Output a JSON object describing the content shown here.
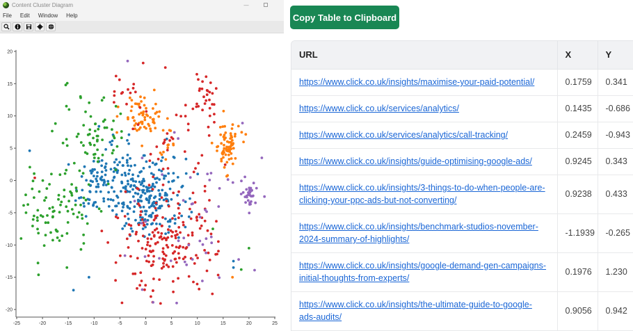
{
  "window": {
    "title": "Content Cluster Diagram",
    "controls": {
      "minimize": "—",
      "maximize": "□"
    },
    "menu": [
      "File",
      "Edit",
      "Window",
      "Help"
    ],
    "toolbar": [
      {
        "icon": "search-icon"
      },
      {
        "icon": "info-icon"
      },
      {
        "icon": "save-icon"
      },
      {
        "icon": "gear-icon"
      },
      {
        "icon": "globe-icon"
      }
    ]
  },
  "copy_button": {
    "label": "Copy Table to Clipboard",
    "color": "#198754"
  },
  "table": {
    "headers": [
      "URL",
      "X",
      "Y"
    ],
    "rows": [
      {
        "url": "https://www.click.co.uk/insights/maximise-your-paid-potential/",
        "x": "0.1759",
        "y": "0.341",
        "tall": false
      },
      {
        "url": "https://www.click.co.uk/services/analytics/",
        "x": "0.1435",
        "y": "-0.686",
        "tall": false
      },
      {
        "url": "https://www.click.co.uk/services/analytics/call-tracking/",
        "x": "0.2459",
        "y": "-0.943",
        "tall": false
      },
      {
        "url": "https://www.click.co.uk/insights/guide-optimising-google-ads/",
        "x": "0.9245",
        "y": "0.343",
        "tall": false
      },
      {
        "url": "https://www.click.co.uk/insights/3-things-to-do-when-people-are-clicking-your-ppc-ads-but-not-converting/",
        "x": "0.9238",
        "y": "0.433",
        "tall": true
      },
      {
        "url": "https://www.click.co.uk/insights/benchmark-studios-november-2024-summary-of-highlights/",
        "x": "-1.1939",
        "y": "-0.265",
        "tall": true
      },
      {
        "url": "https://www.click.co.uk/insights/google-demand-gen-campaigns-initial-thoughts-from-experts/",
        "x": "0.1976",
        "y": "1.230",
        "tall": true
      },
      {
        "url": "https://www.click.co.uk/insights/the-ultimate-guide-to-google-ads-audits/",
        "x": "0.9056",
        "y": "0.942",
        "tall": true
      }
    ]
  },
  "chart_data": {
    "type": "scatter",
    "title": "",
    "xlabel": "",
    "ylabel": "",
    "xlim": [
      -25,
      25
    ],
    "ylim": [
      -20,
      20
    ],
    "xticks": [
      -25,
      -20,
      -15,
      -10,
      -5,
      0,
      5,
      10,
      15,
      20,
      25
    ],
    "yticks": [
      -20,
      -15,
      -10,
      -5,
      0,
      5,
      10,
      15,
      20
    ],
    "grid": false,
    "legend": null,
    "colors": {
      "blue": "#1f77b4",
      "orange": "#ff7f0e",
      "green": "#2ca02c",
      "red": "#d62728",
      "purple": "#9467bd"
    },
    "clusters": [
      {
        "name": "blue-main",
        "color": "blue",
        "cx": 0.5,
        "cy": -2.5,
        "sx": 3.6,
        "sy": 3.0,
        "n": 230
      },
      {
        "name": "blue-sub",
        "color": "blue",
        "cx": -9.5,
        "cy": -0.8,
        "sx": 2.0,
        "sy": 2.0,
        "n": 70
      },
      {
        "name": "blue-upper",
        "color": "blue",
        "cx": -6,
        "cy": 3.5,
        "sx": 2.5,
        "sy": 1.8,
        "n": 30
      },
      {
        "name": "orange-top",
        "color": "orange",
        "cx": -0.6,
        "cy": 9.8,
        "sx": 2.0,
        "sy": 1.8,
        "n": 65
      },
      {
        "name": "orange-right",
        "color": "orange",
        "cx": 15.6,
        "cy": 5.4,
        "sx": 1.3,
        "sy": 1.8,
        "n": 75
      },
      {
        "name": "orange-mid",
        "color": "orange",
        "cx": 4.5,
        "cy": 5.5,
        "sx": 1.2,
        "sy": 1.0,
        "n": 10
      },
      {
        "name": "green-left",
        "color": "green",
        "cx": -17,
        "cy": -5,
        "sx": 3.2,
        "sy": 3.2,
        "n": 85
      },
      {
        "name": "green-upper",
        "color": "green",
        "cx": -10,
        "cy": 6.5,
        "sx": 3.5,
        "sy": 3.0,
        "n": 65
      },
      {
        "name": "red-lower",
        "color": "red",
        "cx": 3.5,
        "cy": -10.5,
        "sx": 5.0,
        "sy": 3.5,
        "n": 170
      },
      {
        "name": "red-upper-right",
        "color": "red",
        "cx": 11.5,
        "cy": 13.5,
        "sx": 1.6,
        "sy": 2.0,
        "n": 28
      },
      {
        "name": "red-scatter",
        "color": "red",
        "cx": 7,
        "cy": 2,
        "sx": 5.0,
        "sy": 7.0,
        "n": 55
      },
      {
        "name": "red-upper-left",
        "color": "red",
        "cx": -5,
        "cy": 14,
        "sx": 2.0,
        "sy": 1.5,
        "n": 14
      },
      {
        "name": "purple-right",
        "color": "purple",
        "cx": 20,
        "cy": -2,
        "sx": 0.7,
        "sy": 0.9,
        "n": 30
      },
      {
        "name": "purple-scatter",
        "color": "purple",
        "cx": 10,
        "cy": -5,
        "sx": 6.5,
        "sy": 8.0,
        "n": 45
      }
    ],
    "outliers": [
      {
        "x": -22.5,
        "y": 4.6,
        "color": "blue"
      },
      {
        "x": -21.5,
        "y": 0.4,
        "color": "red"
      },
      {
        "x": -22.0,
        "y": -1.3,
        "color": "green"
      },
      {
        "x": -23.2,
        "y": -5.0,
        "color": "green"
      },
      {
        "x": -3.5,
        "y": 18.5,
        "color": "purple"
      },
      {
        "x": -0.5,
        "y": 18.2,
        "color": "red"
      },
      {
        "x": 3.8,
        "y": 17.5,
        "color": "red"
      },
      {
        "x": 6.0,
        "y": -19.0,
        "color": "purple"
      },
      {
        "x": 1.0,
        "y": -18.0,
        "color": "red"
      },
      {
        "x": 17.0,
        "y": -12.5,
        "color": "blue"
      },
      {
        "x": 17.0,
        "y": -13.5,
        "color": "blue"
      },
      {
        "x": 16.8,
        "y": -15.0,
        "color": "orange"
      },
      {
        "x": 18.5,
        "y": -13.8,
        "color": "green"
      },
      {
        "x": 13.0,
        "y": -7.5,
        "color": "green"
      },
      {
        "x": 20.0,
        "y": -10.5,
        "color": "green"
      },
      {
        "x": -15.5,
        "y": 14.8,
        "color": "green"
      },
      {
        "x": 22.5,
        "y": 3.5,
        "color": "purple"
      },
      {
        "x": 23.0,
        "y": -2.5,
        "color": "purple"
      },
      {
        "x": -11.0,
        "y": -15.0,
        "color": "blue"
      },
      {
        "x": -14.0,
        "y": -17.0,
        "color": "blue"
      }
    ]
  }
}
